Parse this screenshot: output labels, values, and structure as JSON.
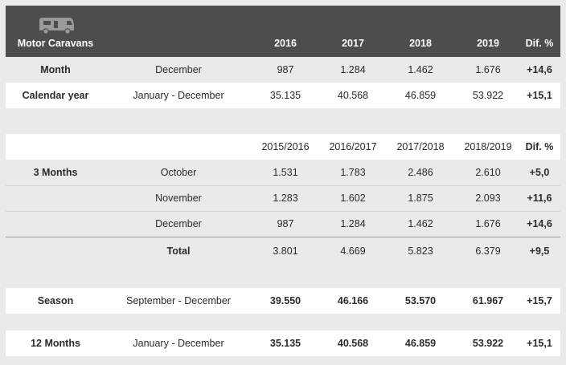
{
  "header": {
    "title": "Motor Caravans",
    "icon": "motorhome-icon",
    "years": [
      "2016",
      "2017",
      "2018",
      "2019"
    ],
    "dif": "Dif. %"
  },
  "top_rows": [
    {
      "label": "Month",
      "period": "December",
      "values": [
        "987",
        "1.284",
        "1.462",
        "1.676"
      ],
      "dif": "+14,6"
    },
    {
      "label": "Calendar year",
      "period": "January - December",
      "values": [
        "35.135",
        "40.568",
        "46.859",
        "53.922"
      ],
      "dif": "+15,1"
    }
  ],
  "three_months": {
    "seasons": [
      "2015/2016",
      "2016/2017",
      "2017/2018",
      "2018/2019"
    ],
    "dif": "Dif. %",
    "label": "3 Months",
    "rows": [
      {
        "period": "October",
        "values": [
          "1.531",
          "1.783",
          "2.486",
          "2.610"
        ],
        "dif": "+5,0"
      },
      {
        "period": "November",
        "values": [
          "1.283",
          "1.602",
          "1.875",
          "2.093"
        ],
        "dif": "+11,6"
      },
      {
        "period": "December",
        "values": [
          "987",
          "1.284",
          "1.462",
          "1.676"
        ],
        "dif": "+14,6"
      }
    ],
    "total": {
      "label": "Total",
      "values": [
        "3.801",
        "4.669",
        "5.823",
        "6.379"
      ],
      "dif": "+9,5"
    }
  },
  "season": {
    "label": "Season",
    "period": "September - December",
    "values": [
      "39.550",
      "46.166",
      "53.570",
      "61.967"
    ],
    "dif": "+15,7"
  },
  "twelve_months": {
    "label": "12 Months",
    "period": "January - December",
    "values": [
      "35.135",
      "40.568",
      "46.859",
      "53.922"
    ],
    "dif": "+15,1"
  }
}
